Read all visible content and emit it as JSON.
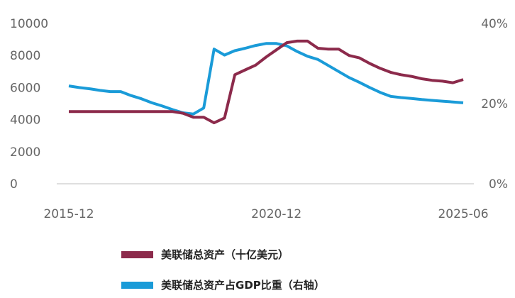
{
  "chart_data": {
    "type": "line",
    "title": "",
    "xlabel": "",
    "ylabel": "",
    "x": [
      "2015-12",
      "2016-03",
      "2016-06",
      "2016-09",
      "2016-12",
      "2017-03",
      "2017-06",
      "2017-09",
      "2017-12",
      "2018-03",
      "2018-06",
      "2018-09",
      "2018-12",
      "2019-03",
      "2019-06",
      "2019-09",
      "2019-12",
      "2020-03",
      "2020-06",
      "2020-09",
      "2020-12",
      "2021-03",
      "2021-06",
      "2021-09",
      "2021-12",
      "2022-03",
      "2022-06",
      "2022-09",
      "2022-12",
      "2023-03",
      "2023-06",
      "2023-09",
      "2023-12",
      "2024-03",
      "2024-06",
      "2024-09",
      "2024-12",
      "2025-03",
      "2025-06"
    ],
    "x_tick_labels": [
      "2015-12",
      "2020-12",
      "2025-06"
    ],
    "y_left_ticks": [
      "0",
      "2000",
      "4000",
      "6000",
      "8000",
      "10000"
    ],
    "y_left_range": [
      0,
      10000
    ],
    "y_right_ticks": [
      "0%",
      "20%",
      "40%"
    ],
    "y_right_range": [
      0,
      40
    ],
    "grid": false,
    "legend_position": "bottom",
    "series": [
      {
        "name": "美联储总资产（十亿美元）",
        "axis": "left",
        "color": "#8c2a4b",
        "values": [
          4500,
          4500,
          4500,
          4500,
          4500,
          4500,
          4500,
          4500,
          4500,
          4500,
          4500,
          4400,
          4150,
          4150,
          3800,
          4100,
          6800,
          7100,
          7400,
          7900,
          8350,
          8800,
          8900,
          8900,
          8450,
          8400,
          8400,
          8000,
          7850,
          7500,
          7200,
          6950,
          6800,
          6700,
          6550,
          6450,
          6400,
          6300,
          6500
        ]
      },
      {
        "name": "美联储总资产占GDP比重（右轴）",
        "axis": "right",
        "color": "#1a9bd8",
        "values": [
          24.4,
          24.0,
          23.7,
          23.3,
          23.0,
          23.0,
          22.0,
          21.2,
          20.2,
          19.4,
          18.5,
          17.7,
          17.4,
          18.9,
          33.6,
          32.1,
          33.2,
          33.8,
          34.5,
          35.0,
          35.0,
          34.4,
          33.0,
          31.8,
          31.0,
          29.5,
          28.0,
          26.5,
          25.3,
          24.0,
          22.8,
          21.8,
          21.5,
          21.3,
          21.0,
          20.8,
          20.6,
          20.4,
          20.2
        ]
      }
    ]
  }
}
